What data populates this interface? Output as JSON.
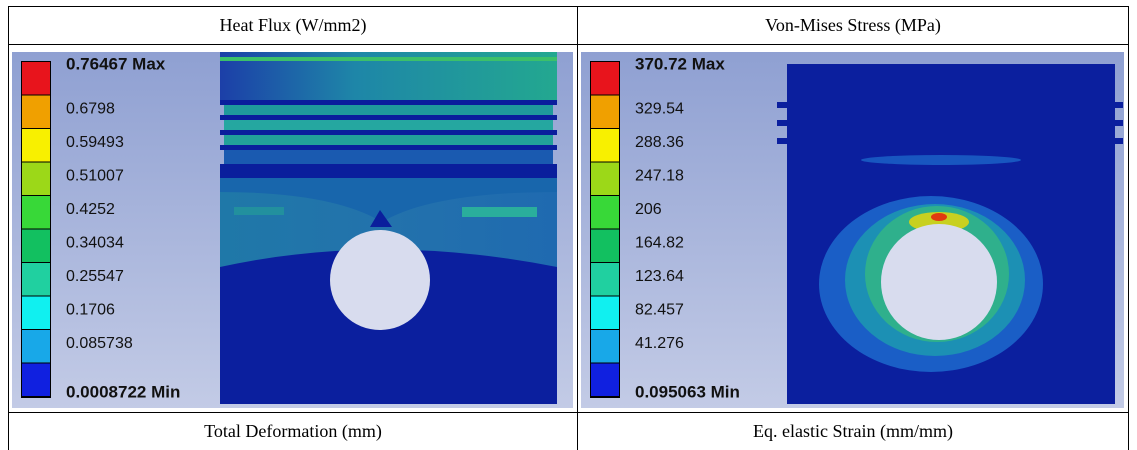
{
  "table": {
    "rows": [
      [
        "Heat Flux (W/mm2)",
        "Von-Mises Stress (MPa)"
      ],
      [
        "Total Deformation (mm)",
        "Eq. elastic Strain (mm/mm)"
      ]
    ]
  },
  "panels": [
    {
      "legend": [
        "0.76467 Max",
        "0.6798",
        "0.59493",
        "0.51007",
        "0.4252",
        "0.34034",
        "0.25547",
        "0.1706",
        "0.085738",
        "0.0008722 Min"
      ]
    },
    {
      "legend": [
        "370.72 Max",
        "329.54",
        "288.36",
        "247.18",
        "206",
        "164.82",
        "123.64",
        "82.457",
        "41.276",
        "0.095063 Min"
      ]
    }
  ]
}
